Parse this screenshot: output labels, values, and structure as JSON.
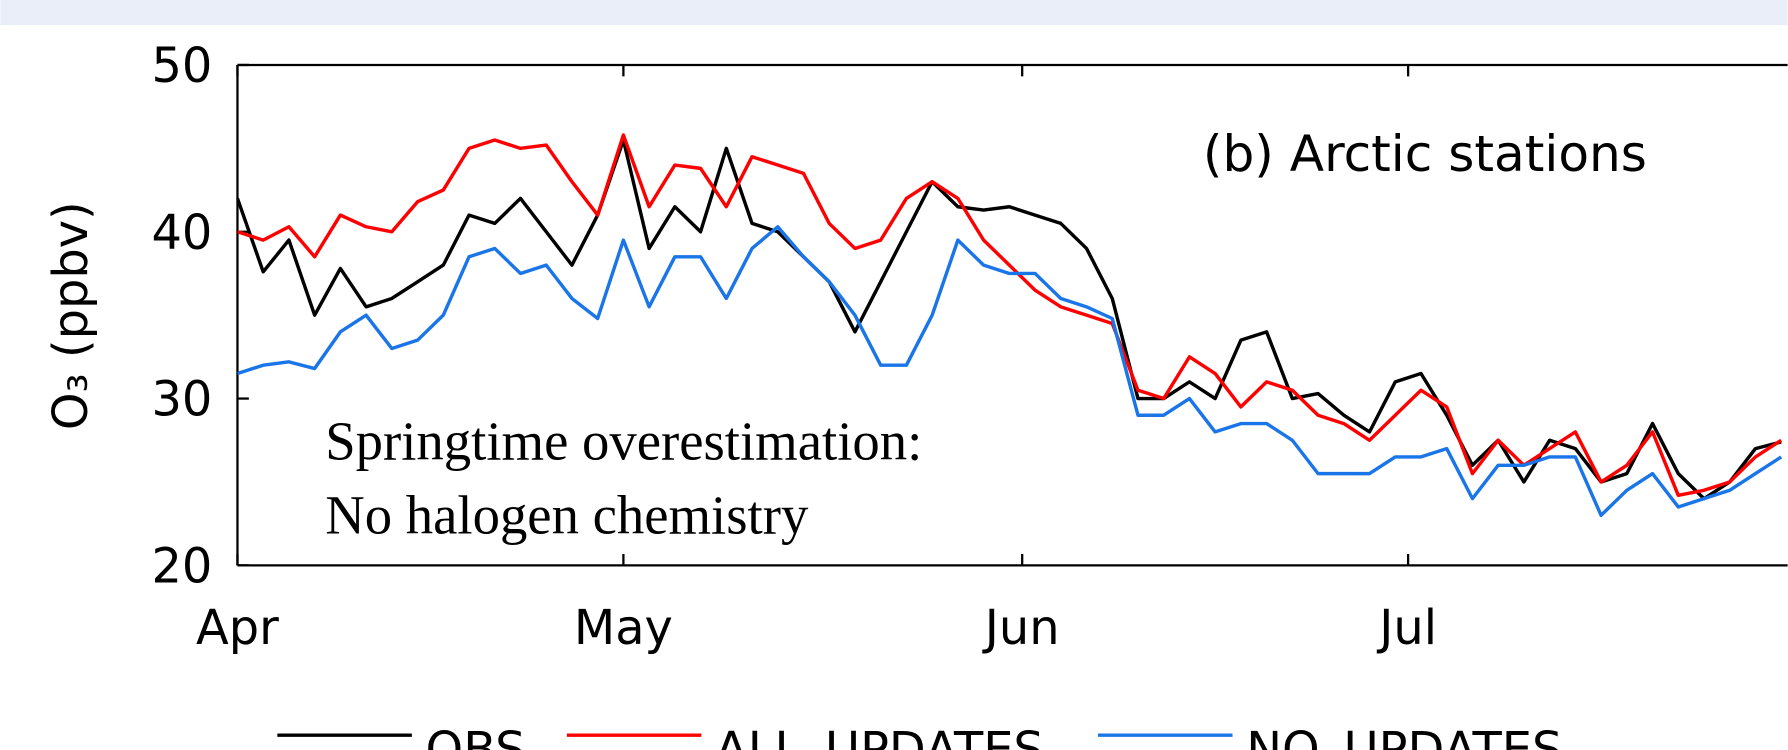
{
  "chart_data": {
    "type": "line",
    "ylabel": "O₃ (ppbv)",
    "annotations": [
      "(b) Arctic stations",
      "Springtime overestimation:",
      "No halogen chemistry"
    ],
    "x": [
      0,
      2,
      4,
      6,
      8,
      10,
      12,
      14,
      16,
      18,
      20,
      22,
      24,
      26,
      28,
      30,
      32,
      34,
      36,
      38,
      40,
      42,
      44,
      46,
      48,
      50,
      52,
      54,
      56,
      58,
      60,
      62,
      64,
      66,
      68,
      70,
      72,
      74,
      76,
      78,
      80,
      82,
      84,
      86,
      88,
      90,
      92,
      94,
      96,
      98,
      100,
      102,
      104,
      106,
      108,
      110,
      112,
      114,
      116,
      118,
      120
    ],
    "xlim": [
      0,
      120.5
    ],
    "xticks": [
      {
        "value": 0,
        "label": "Apr"
      },
      {
        "value": 30,
        "label": "May"
      },
      {
        "value": 61,
        "label": "Jun"
      },
      {
        "value": 91,
        "label": "Jul"
      }
    ],
    "ylim": [
      20,
      50
    ],
    "yticks": [
      20,
      30,
      40,
      50
    ],
    "series": [
      {
        "name": "OBS.",
        "color": "#000000",
        "values": [
          42,
          37.6,
          39.5,
          35,
          37.8,
          35.5,
          36,
          37,
          38,
          41,
          40.5,
          42,
          40,
          38,
          41,
          45.5,
          39,
          41.5,
          40,
          45,
          40.5,
          40,
          38.5,
          37,
          34,
          37,
          40,
          43,
          41.5,
          41.3,
          41.5,
          41,
          40.5,
          39,
          36,
          30,
          30,
          31,
          30,
          33.5,
          34,
          30,
          30.3,
          29,
          28,
          31,
          31.5,
          29,
          26,
          27.5,
          25,
          27.5,
          27,
          25,
          25.5,
          28.5,
          25.5,
          24,
          25,
          27,
          27.4
        ]
      },
      {
        "name": "ALL_UPDATES",
        "color": "#ff0000",
        "values": [
          40,
          39.5,
          40.3,
          38.5,
          41,
          40.3,
          40,
          41.8,
          42.5,
          45,
          45.5,
          45,
          45.2,
          43,
          41,
          45.8,
          41.5,
          44,
          43.8,
          41.5,
          44.5,
          44,
          43.5,
          40.5,
          39,
          39.5,
          42,
          43,
          42,
          39.5,
          38,
          36.5,
          35.5,
          35,
          34.5,
          30.5,
          30,
          32.5,
          31.5,
          29.5,
          31,
          30.5,
          29,
          28.5,
          27.5,
          29,
          30.5,
          29.5,
          25.5,
          27.5,
          26,
          27,
          28,
          25,
          26,
          28,
          24.2,
          24.5,
          25,
          26.5,
          27.5
        ]
      },
      {
        "name": "NO_UPDATES",
        "color": "#1a75e8",
        "values": [
          31.5,
          32,
          32.2,
          31.8,
          34,
          35,
          33,
          33.5,
          35,
          38.5,
          39,
          37.5,
          38,
          36,
          34.8,
          39.5,
          35.5,
          38.5,
          38.5,
          36,
          39,
          40.3,
          38.5,
          37,
          35,
          32,
          32,
          35,
          39.5,
          38,
          37.5,
          37.5,
          36,
          35.5,
          34.8,
          29,
          29,
          30,
          28,
          28.5,
          28.5,
          27.5,
          25.5,
          25.5,
          25.5,
          26.5,
          26.5,
          27,
          24,
          26,
          26,
          26.5,
          26.5,
          23,
          24.5,
          25.5,
          23.5,
          24,
          24.5,
          25.5,
          26.5
        ]
      }
    ]
  }
}
